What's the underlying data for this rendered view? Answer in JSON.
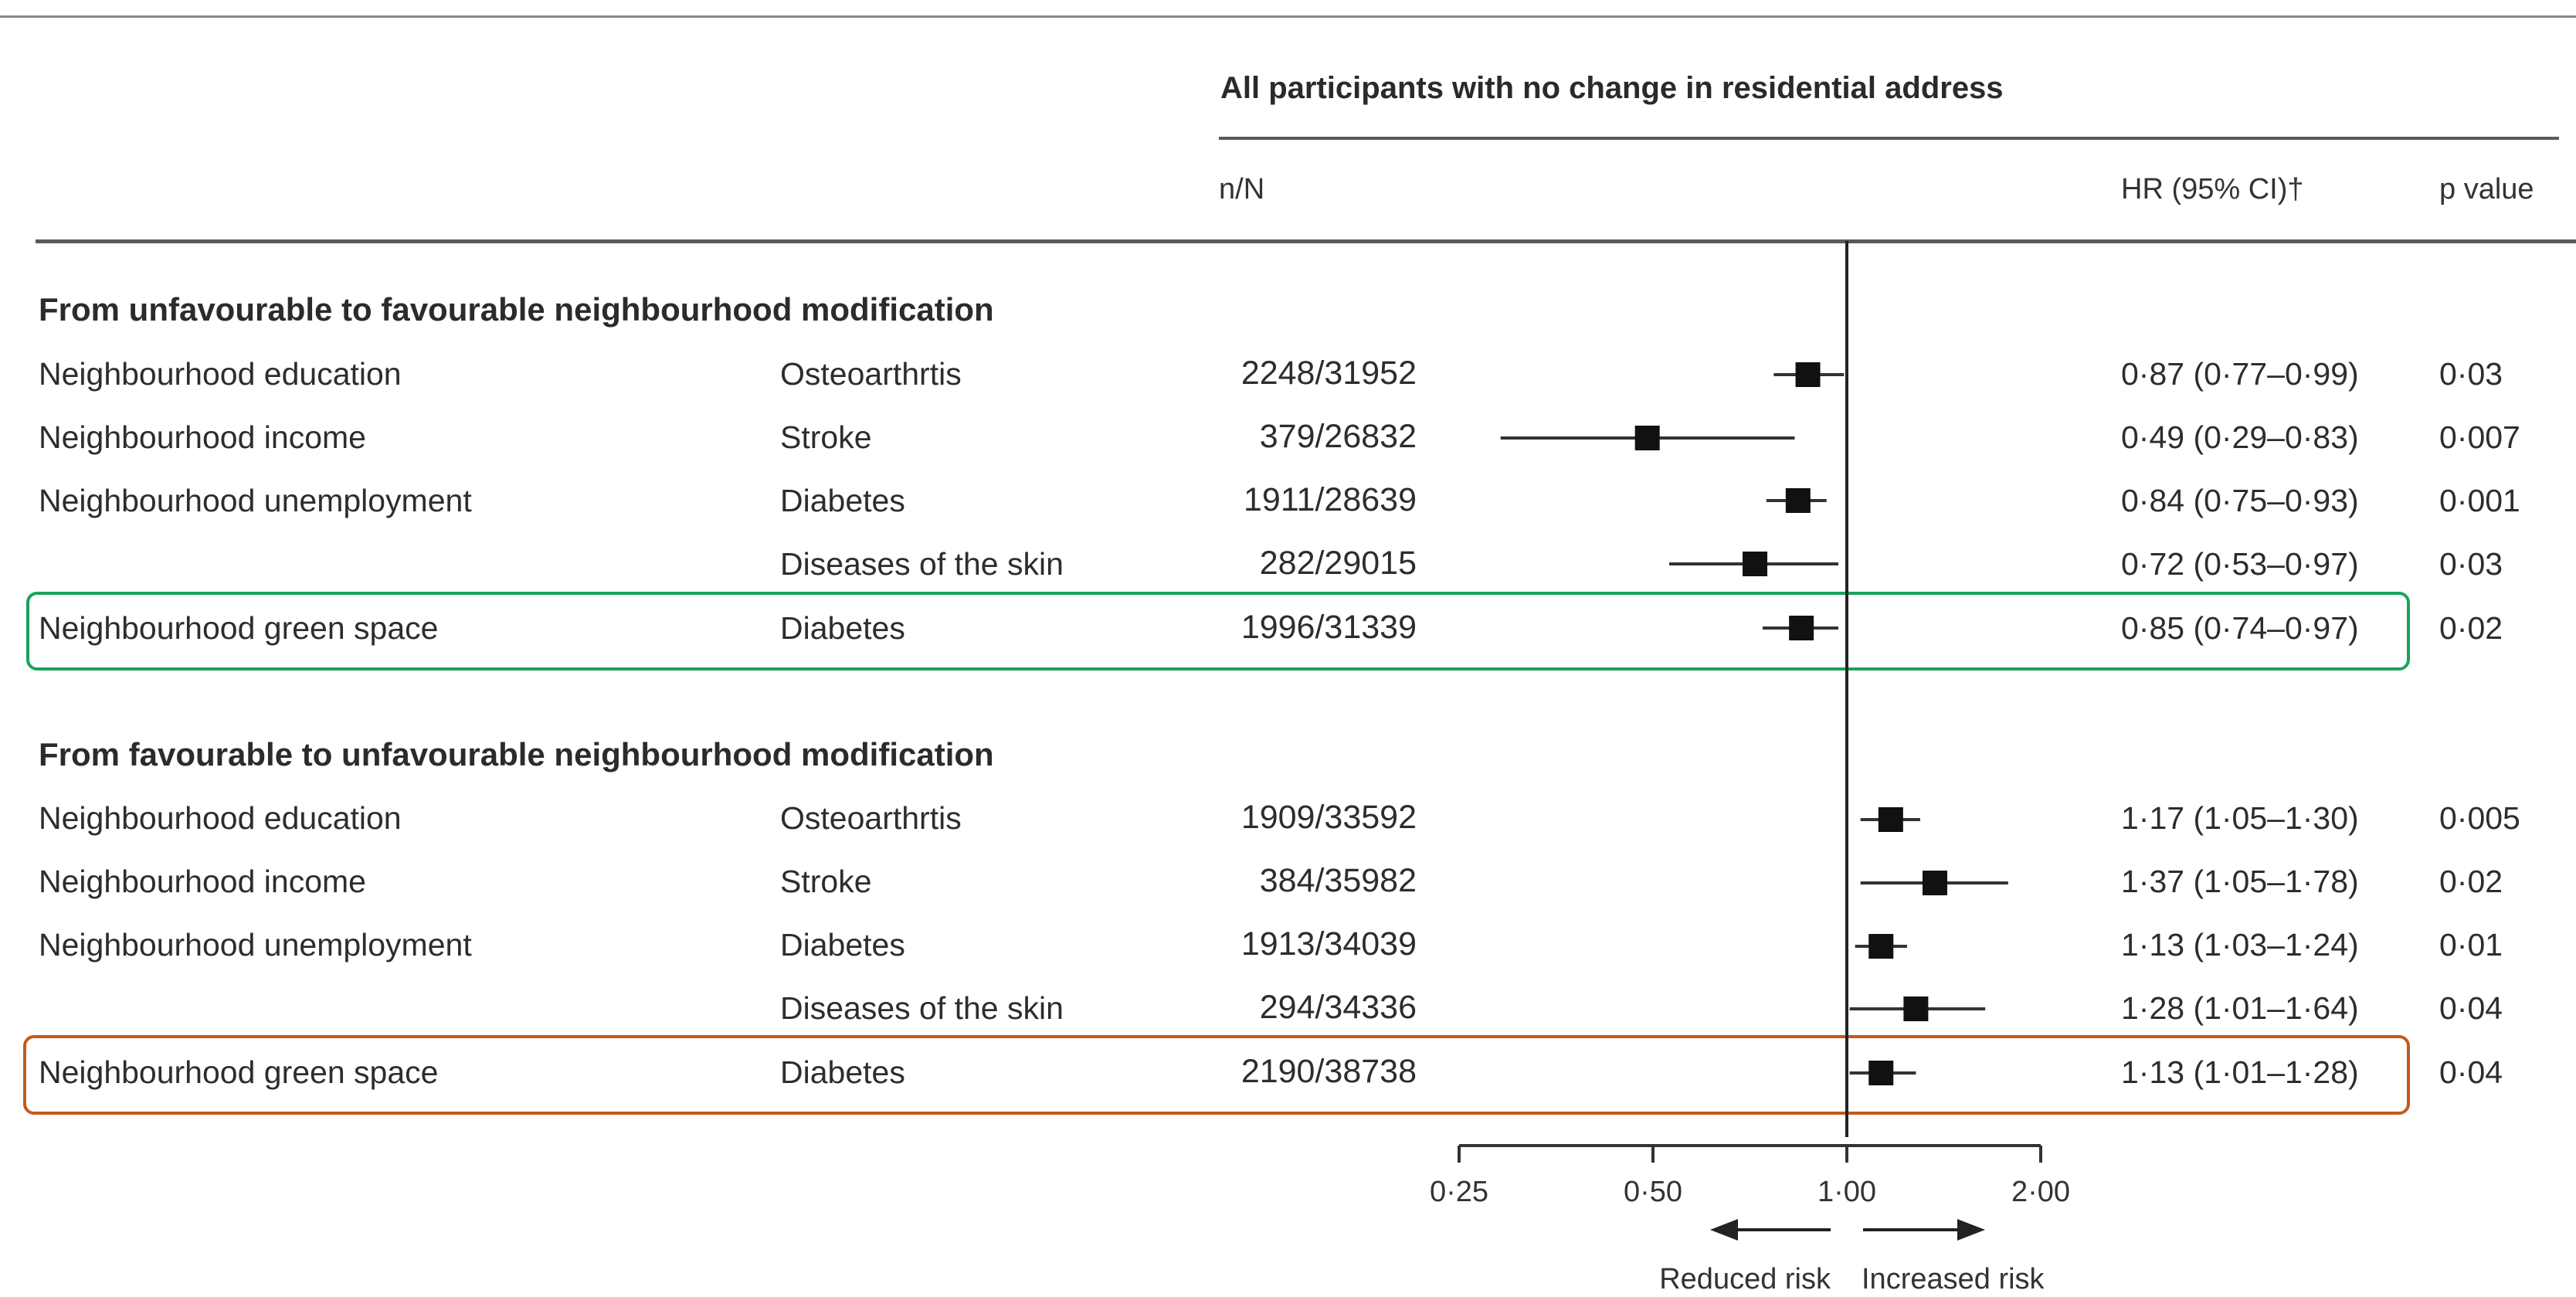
{
  "colors": {
    "highlight_green": "#1aa35a",
    "highlight_orange": "#c4581e",
    "marker": "#111111",
    "line": "#333333"
  },
  "header": {
    "group_title": "All participants with no change in residential address",
    "col_nN": "n/N",
    "col_hr": "HR (95% CI)†",
    "col_p": "p value"
  },
  "sections": [
    {
      "title": "From unfavourable to favourable neighbourhood modification",
      "rows": [
        {
          "exposure": "Neighbourhood education",
          "outcome": "Osteoarthrtis",
          "nN": "2248/31952",
          "hr_text": "0·87 (0·77–0·99)",
          "p": "0·03"
        },
        {
          "exposure": "Neighbourhood income",
          "outcome": "Stroke",
          "nN": "379/26832",
          "hr_text": "0·49 (0·29–0·83)",
          "p": "0·007"
        },
        {
          "exposure": "Neighbourhood unemployment",
          "outcome": "Diabetes",
          "nN": "1911/28639",
          "hr_text": "0·84 (0·75–0·93)",
          "p": "0·001"
        },
        {
          "exposure": "",
          "outcome": "Diseases of the skin",
          "nN": "282/29015",
          "hr_text": "0·72 (0·53–0·97)",
          "p": "0·03"
        },
        {
          "exposure": "Neighbourhood green space",
          "outcome": "Diabetes",
          "nN": "1996/31339",
          "hr_text": "0·85 (0·74–0·97)",
          "p": "0·02"
        }
      ]
    },
    {
      "title": "From favourable to unfavourable neighbourhood modification",
      "rows": [
        {
          "exposure": "Neighbourhood education",
          "outcome": "Osteoarthrtis",
          "nN": "1909/33592",
          "hr_text": "1·17 (1·05–1·30)",
          "p": "0·005"
        },
        {
          "exposure": "Neighbourhood income",
          "outcome": "Stroke",
          "nN": "384/35982",
          "hr_text": "1·37 (1·05–1·78)",
          "p": "0·02"
        },
        {
          "exposure": "Neighbourhood unemployment",
          "outcome": "Diabetes",
          "nN": "1913/34039",
          "hr_text": "1·13 (1·03–1·24)",
          "p": "0·01"
        },
        {
          "exposure": "",
          "outcome": "Diseases of the skin",
          "nN": "294/34336",
          "hr_text": "1·28 (1·01–1·64)",
          "p": "0·04"
        },
        {
          "exposure": "Neighbourhood green space",
          "outcome": "Diabetes",
          "nN": "2190/38738",
          "hr_text": "1·13 (1·01–1·28)",
          "p": "0·04"
        }
      ]
    }
  ],
  "chart_data": {
    "type": "scatter",
    "scale": "log",
    "reference_line": 1.0,
    "xlim": [
      0.25,
      2.0
    ],
    "ticks": [
      0.25,
      0.5,
      1.0,
      2.0
    ],
    "tick_labels": [
      "0·25",
      "0·50",
      "1·00",
      "2·00"
    ],
    "direction_labels": {
      "left": "Reduced risk",
      "right": "Increased risk"
    },
    "points": [
      {
        "hr": 0.87,
        "lo": 0.77,
        "hi": 0.99
      },
      {
        "hr": 0.49,
        "lo": 0.29,
        "hi": 0.83
      },
      {
        "hr": 0.84,
        "lo": 0.75,
        "hi": 0.93
      },
      {
        "hr": 0.72,
        "lo": 0.53,
        "hi": 0.97
      },
      {
        "hr": 0.85,
        "lo": 0.74,
        "hi": 0.97
      },
      {
        "hr": 1.17,
        "lo": 1.05,
        "hi": 1.3
      },
      {
        "hr": 1.37,
        "lo": 1.05,
        "hi": 1.78
      },
      {
        "hr": 1.13,
        "lo": 1.03,
        "hi": 1.24
      },
      {
        "hr": 1.28,
        "lo": 1.01,
        "hi": 1.64
      },
      {
        "hr": 1.13,
        "lo": 1.01,
        "hi": 1.28
      }
    ],
    "highlighted_rows": {
      "green": 4,
      "orange": 9
    }
  }
}
